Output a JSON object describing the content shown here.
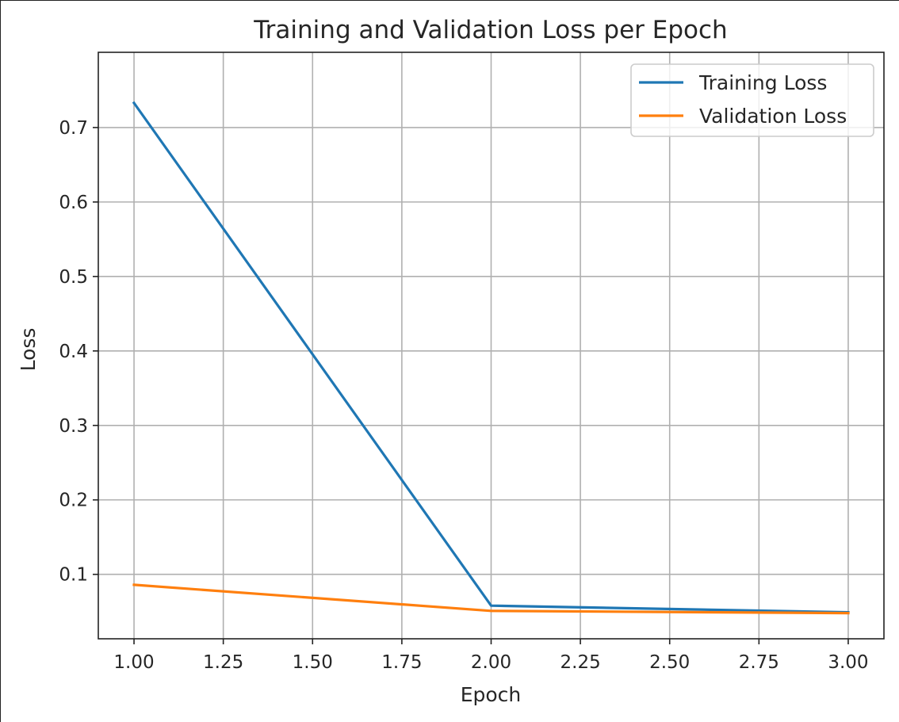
{
  "chart_data": {
    "type": "line",
    "title": "Training and Validation Loss per Epoch",
    "xlabel": "Epoch",
    "ylabel": "Loss",
    "x": [
      1,
      2,
      3
    ],
    "xlim": [
      0.9,
      3.1
    ],
    "ylim": [
      0.0135,
      0.801
    ],
    "xticks": [
      1.0,
      1.25,
      1.5,
      1.75,
      2.0,
      2.25,
      2.5,
      2.75,
      3.0
    ],
    "xtick_labels": [
      "1.00",
      "1.25",
      "1.50",
      "1.75",
      "2.00",
      "2.25",
      "2.50",
      "2.75",
      "3.00"
    ],
    "yticks": [
      0.1,
      0.2,
      0.3,
      0.4,
      0.5,
      0.6,
      0.7
    ],
    "ytick_labels": [
      "0.1",
      "0.2",
      "0.3",
      "0.4",
      "0.5",
      "0.6",
      "0.7"
    ],
    "series": [
      {
        "name": "Training Loss",
        "values": [
          0.733,
          0.058,
          0.049
        ],
        "color": "#1f77b4"
      },
      {
        "name": "Validation Loss",
        "values": [
          0.086,
          0.051,
          0.048
        ],
        "color": "#ff7f0e"
      }
    ],
    "grid": true,
    "legend_position": "top-right"
  }
}
